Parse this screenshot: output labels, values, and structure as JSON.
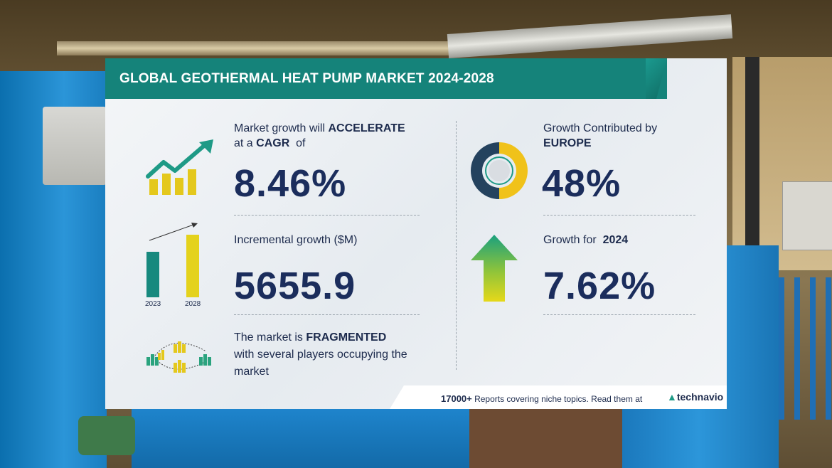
{
  "title": "GLOBAL GEOTHERMAL HEAT PUMP MARKET 2024-2028",
  "cagr": {
    "line1_prefix": "Market growth will ",
    "line1_bold": "ACCELERATE",
    "line2_prefix": "at a ",
    "line2_bold": "CAGR",
    "line2_suffix": "  of",
    "value": "8.46%"
  },
  "incremental": {
    "label": "Incremental growth ($M)",
    "value": "5655.9",
    "year_start": "2023",
    "year_end": "2028"
  },
  "fragmented": {
    "line1_prefix": "The market is ",
    "line1_bold": "FRAGMENTED",
    "line2": "with several players occupying the",
    "line3": "market"
  },
  "region": {
    "label": "Growth Contributed by",
    "region_name": "EUROPE",
    "value": "48%",
    "share": 0.48
  },
  "yoy": {
    "label_prefix": "Growth for  ",
    "year": "2024",
    "value": "7.62%"
  },
  "footer": {
    "count": "17000+",
    "text": " Reports covering niche topics. Read them at",
    "logo": "technavio"
  },
  "icons": [
    "growth-chart-icon",
    "bar-growth-icon",
    "players-network-icon",
    "donut-share-icon",
    "up-arrow-icon"
  ],
  "colors": {
    "teal": "#15837a",
    "navy": "#1b2d5c",
    "yellow": "#e4c81c",
    "green": "#2aa37e"
  }
}
